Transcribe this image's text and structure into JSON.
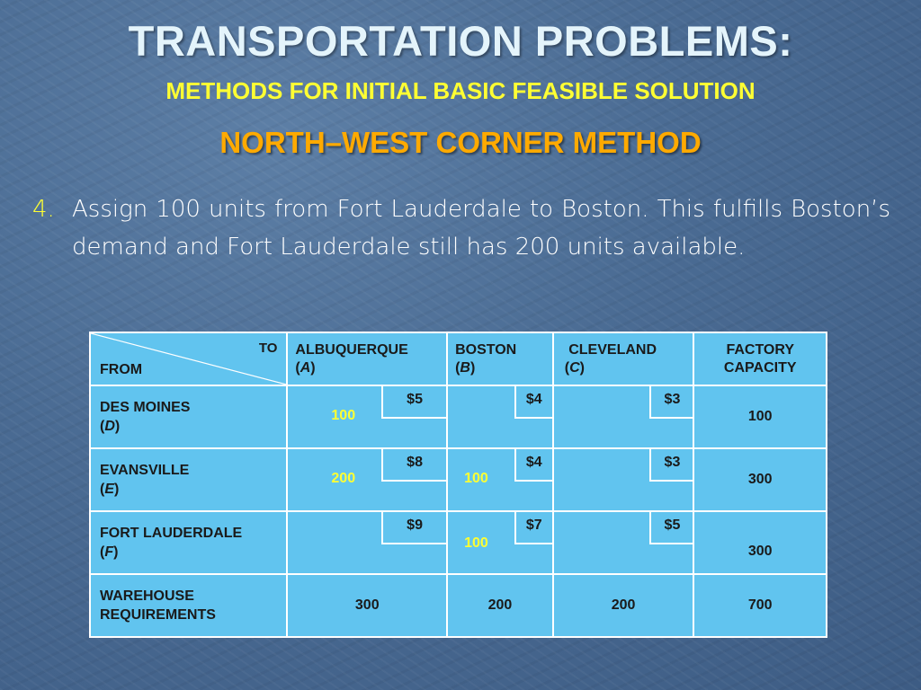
{
  "slide": {
    "title": "TRANSPORTATION PROBLEMS:",
    "subtitle": "METHODS FOR INITIAL BASIC FEASIBLE SOLUTION",
    "method": "NORTH–WEST CORNER METHOD",
    "bullet_number": "4.",
    "bullet_text": "Assign 100 units from Fort Lauderdale to Boston. This fulfills Boston’s demand and Fort Lauderdale still has 200 units available."
  },
  "table": {
    "to_label": "TO",
    "from_label": "FROM",
    "columns": [
      {
        "name": "ALBUQUERQUE",
        "code": "A"
      },
      {
        "name": "BOSTON",
        "code": "B"
      },
      {
        "name": "CLEVELAND",
        "code": "C"
      }
    ],
    "capacity_header": [
      "FACTORY",
      "CAPACITY"
    ],
    "rows": [
      {
        "name": "DES MOINES",
        "code": "D",
        "costs": [
          "$5",
          "$4",
          "$3"
        ],
        "allocations": [
          "100",
          "",
          ""
        ],
        "capacity": "100"
      },
      {
        "name": "EVANSVILLE",
        "code": "E",
        "costs": [
          "$8",
          "$4",
          "$3"
        ],
        "allocations": [
          "200",
          "100",
          ""
        ],
        "capacity": "300"
      },
      {
        "name": "FORT LAUDERDALE",
        "code": "F",
        "costs": [
          "$9",
          "$7",
          "$5"
        ],
        "allocations": [
          "",
          "100",
          ""
        ],
        "capacity": "300"
      }
    ],
    "requirements_label": [
      "WAREHOUSE",
      "REQUIREMENTS"
    ],
    "requirements": [
      "300",
      "200",
      "200"
    ],
    "total": "700"
  },
  "colors": {
    "title": "#e4f4fb",
    "subtitle": "#ffff33",
    "method": "#ffaa00",
    "table_fill": "#61c4ef",
    "allocation": "#ffff33"
  }
}
